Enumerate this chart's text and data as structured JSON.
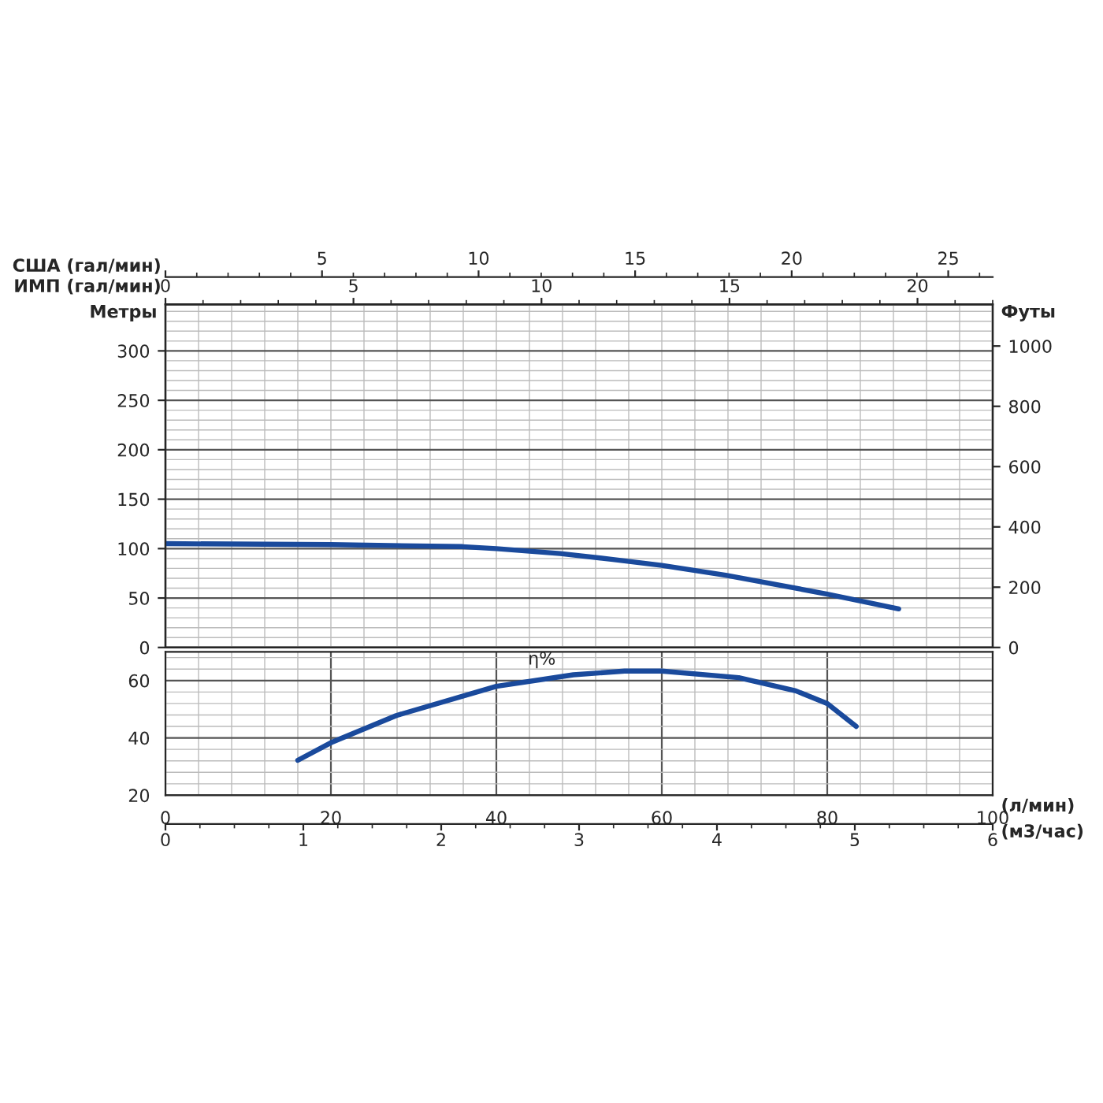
{
  "chart_data": [
    {
      "type": "line",
      "ylabel": "Метры",
      "y2label": "Футы",
      "x2label": "США (гал/мин)",
      "xlabel": "ИМП (гал/мин)",
      "xlim": [
        0,
        22.0
      ],
      "xticks": [
        0,
        5,
        10,
        15,
        20
      ],
      "ylim": [
        0,
        347
      ],
      "yticks": [
        0,
        50,
        100,
        150,
        200,
        250,
        300
      ],
      "y2lim": [
        0,
        1138
      ],
      "y2ticks": [
        0,
        200,
        400,
        600,
        800,
        1000
      ],
      "x2lim": [
        0,
        26.42
      ],
      "x2ticks": [
        {
          "value": 0,
          "label": null
        },
        5,
        10,
        15,
        20,
        25
      ],
      "grid": true,
      "series": [
        {
          "color": "#1a4a9c",
          "x": [
            0,
            4.4,
            7.9,
            8.8,
            10.5,
            11.9,
            13.2,
            14.9,
            17.6,
            19.5
          ],
          "values": [
            105,
            104,
            102,
            100,
            95,
            89,
            83,
            73,
            54,
            39
          ]
        }
      ]
    },
    {
      "type": "line",
      "xlabel": "(л/мин)",
      "x2label": "(м3/час)",
      "xlim": [
        0,
        100
      ],
      "xticks": [
        0,
        20,
        40,
        60,
        80,
        100
      ],
      "ylim": [
        20,
        70
      ],
      "yticks": [
        20,
        40,
        60
      ],
      "x2lim": [
        0,
        6
      ],
      "x2ticks": [
        0,
        1,
        2,
        3,
        4,
        5,
        6
      ],
      "grid": true,
      "series": [
        {
          "name": "η%",
          "color": "#1a4a9c",
          "x": [
            16,
            20.2,
            27.9,
            40,
            49.3,
            55.5,
            60,
            69.3,
            76.2,
            80,
            83.5
          ],
          "values": [
            32.2,
            38.6,
            47.8,
            58,
            62,
            63.3,
            63.3,
            61,
            56.4,
            52,
            44
          ]
        }
      ]
    }
  ]
}
